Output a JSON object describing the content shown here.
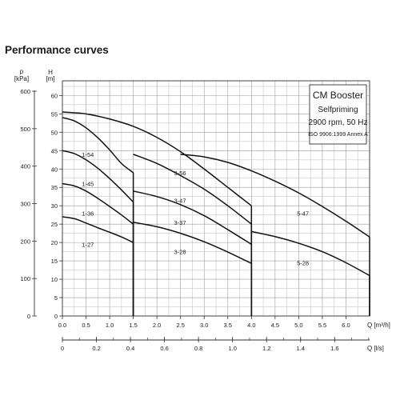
{
  "title": "Performance curves",
  "chart_data": {
    "type": "line",
    "title": "Performance curves",
    "legend_box": {
      "title": "CM Booster",
      "subtitle": "Selfpriming",
      "speed": "2900 rpm, 50 Hz",
      "standard": "ISO 9906:1999 Annex A"
    },
    "x_axis": {
      "label": "Q [m³/h]",
      "range": [
        0,
        5.5
      ],
      "ticks": [
        0.0,
        0.5,
        1.0,
        1.5,
        2.0,
        2.5,
        3.0,
        3.5,
        4.0,
        4.5,
        5.0,
        5.5,
        6.0
      ],
      "tick_labels": [
        "0.0",
        "0.5",
        "1.0",
        "1.5",
        "2.0",
        "2.5",
        "3.0",
        "3.5",
        "4.0",
        "4.5",
        "5.0",
        "5.5",
        "6.0"
      ]
    },
    "x2_axis": {
      "label": "Q [l/s]",
      "ticks": [
        0,
        0.2,
        0.4,
        0.6,
        0.8,
        1.0,
        1.2,
        1.4,
        1.6
      ],
      "tick_labels": [
        "0",
        "0.2",
        "0.4",
        "0.6",
        "0.8",
        "1.0",
        "1.2",
        "1.4",
        "1.6"
      ]
    },
    "y_axis": {
      "label_top": "H",
      "label_unit": "[m]",
      "range": [
        0,
        64
      ],
      "ticks": [
        0,
        5,
        10,
        15,
        20,
        25,
        30,
        35,
        40,
        45,
        50,
        55,
        60
      ],
      "tick_labels": [
        "0",
        "5",
        "10",
        "15",
        "20",
        "25",
        "30",
        "35",
        "40",
        "45",
        "50",
        "55",
        "60"
      ]
    },
    "y2_axis": {
      "label_top": "p",
      "label_unit": "[kPa]",
      "ticks": [
        0,
        100,
        200,
        300,
        400,
        500,
        600
      ],
      "tick_labels": [
        "0",
        "100",
        "200",
        "300",
        "400",
        "500",
        "600"
      ]
    },
    "grid": true,
    "series": [
      {
        "name": "1-27",
        "x": [
          0,
          0.25,
          0.5,
          0.75,
          1.0,
          1.25,
          1.5
        ],
        "y": [
          27,
          26.5,
          25.3,
          24.0,
          22.8,
          21.5,
          20.0
        ],
        "end_at_zero": true
      },
      {
        "name": "1-36",
        "x": [
          0,
          0.25,
          0.5,
          0.75,
          1.0,
          1.25,
          1.5
        ],
        "y": [
          36,
          35.4,
          34.0,
          32.0,
          29.8,
          27.5,
          25.0
        ],
        "end_at_zero": true
      },
      {
        "name": "1-45",
        "x": [
          0,
          0.25,
          0.5,
          0.75,
          1.0,
          1.25,
          1.5
        ],
        "y": [
          45,
          44.2,
          42.5,
          40.2,
          37.4,
          34.3,
          31.0
        ],
        "end_at_zero": true
      },
      {
        "name": "1-54",
        "x": [
          0,
          0.25,
          0.5,
          0.75,
          1.0,
          1.25,
          1.5
        ],
        "y": [
          54,
          53.1,
          51.2,
          48.5,
          45.2,
          41.5,
          39.0
        ],
        "end_at_zero": true
      },
      {
        "name": "3-28",
        "x": [
          1.5,
          2.0,
          2.5,
          3.0,
          3.5,
          4.0
        ],
        "y": [
          25.5,
          24.3,
          22.5,
          20.2,
          17.4,
          14.3
        ],
        "end_at_zero": true
      },
      {
        "name": "3-37",
        "x": [
          1.5,
          2.0,
          2.5,
          3.0,
          3.5,
          4.0
        ],
        "y": [
          34.0,
          32.5,
          30.3,
          27.3,
          23.5,
          19.5
        ],
        "end_at_zero": true
      },
      {
        "name": "3-47",
        "x": [
          1.5,
          2.0,
          2.5,
          3.0,
          3.5,
          4.0
        ],
        "y": [
          44.0,
          41.5,
          38.2,
          34.5,
          30.0,
          25.0
        ],
        "end_at_zero": true
      },
      {
        "name": "3-56",
        "x": [
          0,
          0.5,
          1.0,
          1.5,
          2.0,
          2.5,
          3.0,
          3.5,
          4.0
        ],
        "y": [
          55.5,
          55.0,
          53.6,
          51.6,
          48.6,
          44.7,
          40.0,
          35.0,
          30.0
        ],
        "end_at_zero": true
      },
      {
        "name": "5-28",
        "x": [
          4.0,
          4.5,
          5.0,
          5.5,
          6.0,
          6.5
        ],
        "y": [
          23.0,
          21.6,
          19.8,
          17.5,
          14.5,
          11.0
        ],
        "end_at_zero": true
      },
      {
        "name": "5-47",
        "x": [
          2.5,
          3.0,
          3.5,
          4.0,
          4.5,
          5.0,
          5.5,
          6.0,
          6.5
        ],
        "y": [
          44.0,
          43.3,
          41.8,
          39.5,
          36.7,
          33.5,
          29.8,
          25.8,
          21.5
        ],
        "end_at_zero": true
      }
    ],
    "curve_labels": [
      {
        "text": "1-54",
        "x": 0.75,
        "y": 44.0
      },
      {
        "text": "1-45",
        "x": 0.75,
        "y": 36.0
      },
      {
        "text": "1-36",
        "x": 0.75,
        "y": 28.0
      },
      {
        "text": "1-27",
        "x": 0.75,
        "y": 19.5
      },
      {
        "text": "3-56",
        "x": 2.7,
        "y": 39.0
      },
      {
        "text": "3-47",
        "x": 2.7,
        "y": 31.5
      },
      {
        "text": "3-37",
        "x": 2.7,
        "y": 25.5
      },
      {
        "text": "3-28",
        "x": 2.7,
        "y": 17.5
      },
      {
        "text": "5-47",
        "x": 5.3,
        "y": 28.0
      },
      {
        "text": "5-28",
        "x": 5.3,
        "y": 14.5
      }
    ]
  }
}
